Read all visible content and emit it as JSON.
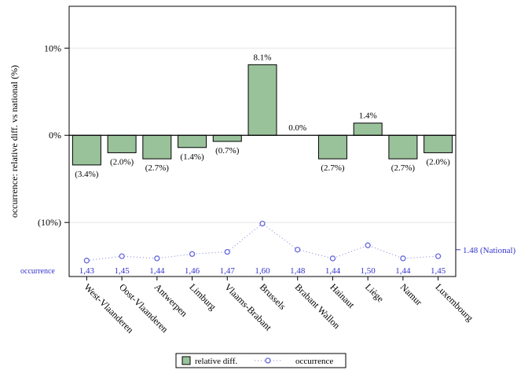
{
  "chart_data": {
    "type": "bar",
    "ylabel": "occurrence: relative diff. vs national (%)",
    "ylim": [
      -16.2,
      14.8
    ],
    "yticks": [
      {
        "value": 10,
        "label": "10%"
      },
      {
        "value": 0,
        "label": "0%"
      },
      {
        "value": -10,
        "label": "(10%)"
      }
    ],
    "categories": [
      "West-Vlaanderen",
      "Oost-Vlaanderen",
      "Antwerpen",
      "Limburg",
      "Vlaams-Brabant",
      "Brussels",
      "Brabant Wallon",
      "Hainaut",
      "Liège",
      "Namur",
      "Luxembourg"
    ],
    "series": [
      {
        "name": "relative diff.",
        "values": [
          -3.4,
          -2.0,
          -2.7,
          -1.4,
          -0.7,
          8.1,
          0.0,
          -2.7,
          1.4,
          -2.7,
          -2.0
        ],
        "labels": [
          "(3.4%)",
          "(2.0%)",
          "(2.7%)",
          "(1.4%)",
          "(0.7%)",
          "8.1%",
          "0.0%",
          "(2.7%)",
          "1.4%",
          "(2.7%)",
          "(2.0%)"
        ],
        "color": "#99c29a"
      },
      {
        "name": "occurrence",
        "values": [
          1.43,
          1.45,
          1.44,
          1.46,
          1.47,
          1.6,
          1.48,
          1.44,
          1.5,
          1.44,
          1.45
        ],
        "labels": [
          "1,43",
          "1,45",
          "1,44",
          "1,46",
          "1,47",
          "1,60",
          "1,48",
          "1,44",
          "1,50",
          "1,44",
          "1,45"
        ],
        "color": "#3333cc",
        "row_label": "occurrence"
      }
    ],
    "reference": {
      "value": 1.48,
      "label": "1.48 (National)"
    },
    "legend": {
      "position": "bottom-center",
      "items": [
        "relative diff.",
        "occurrence"
      ]
    },
    "grid": true
  }
}
